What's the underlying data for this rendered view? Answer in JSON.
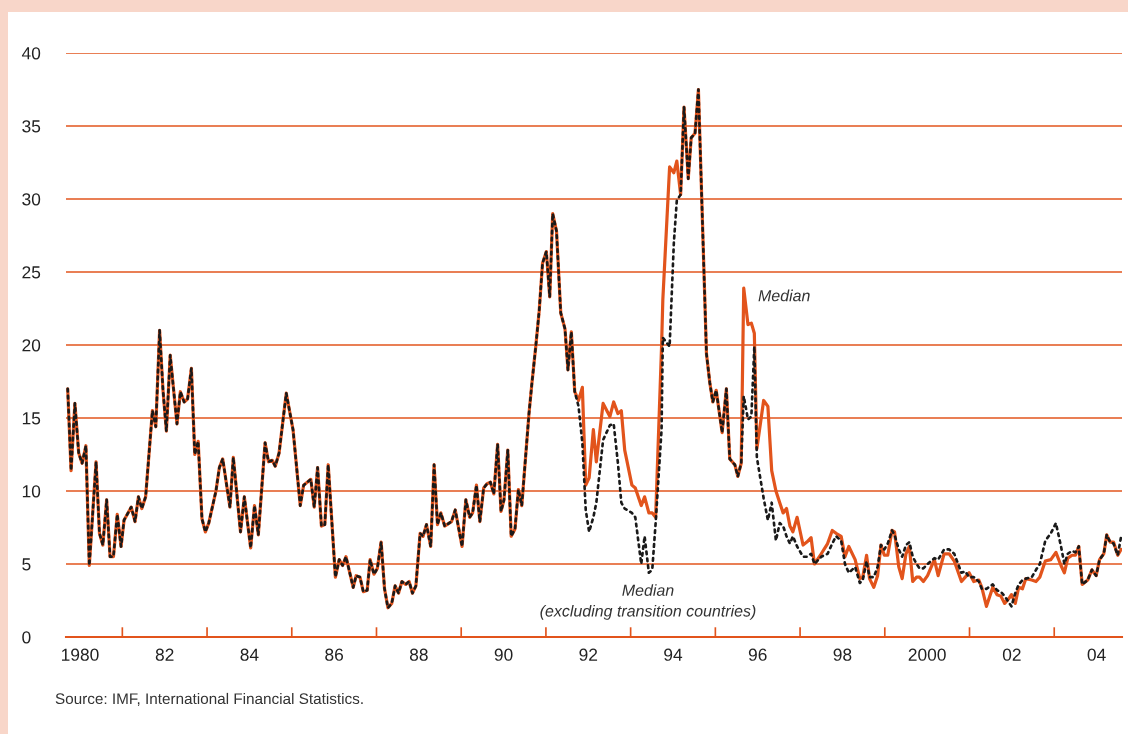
{
  "chart_data": {
    "type": "line",
    "xlim": [
      1979.67,
      2004.6
    ],
    "ylim": [
      0,
      40
    ],
    "yticks": [
      0,
      5,
      10,
      15,
      20,
      25,
      30,
      35,
      40
    ],
    "xticks": [
      {
        "value": 1980,
        "label": "1980"
      },
      {
        "value": 1981,
        "label": null
      },
      {
        "value": 1982,
        "label": "82"
      },
      {
        "value": 1983,
        "label": null
      },
      {
        "value": 1984,
        "label": "84"
      },
      {
        "value": 1985,
        "label": null
      },
      {
        "value": 1986,
        "label": "86"
      },
      {
        "value": 1987,
        "label": null
      },
      {
        "value": 1988,
        "label": "88"
      },
      {
        "value": 1989,
        "label": null
      },
      {
        "value": 1990,
        "label": "90"
      },
      {
        "value": 1991,
        "label": null
      },
      {
        "value": 1992,
        "label": "92"
      },
      {
        "value": 1993,
        "label": null
      },
      {
        "value": 1994,
        "label": "94"
      },
      {
        "value": 1995,
        "label": null
      },
      {
        "value": 1996,
        "label": "96"
      },
      {
        "value": 1997,
        "label": null
      },
      {
        "value": 1998,
        "label": "98"
      },
      {
        "value": 1999,
        "label": null
      },
      {
        "value": 2000,
        "label": "2000"
      },
      {
        "value": 2001,
        "label": null
      },
      {
        "value": 2002,
        "label": "02"
      },
      {
        "value": 2003,
        "label": null
      },
      {
        "value": 2004,
        "label": "04"
      }
    ],
    "grid": "y",
    "annotations": [
      "Source: IMF, International Financial Statistics."
    ],
    "x": [
      1979.71,
      1979.79,
      1979.88,
      1979.97,
      1980.05,
      1980.14,
      1980.22,
      1980.38,
      1980.46,
      1980.54,
      1980.63,
      1980.71,
      1980.79,
      1980.88,
      1980.97,
      1981.04,
      1981.21,
      1981.3,
      1981.38,
      1981.46,
      1981.55,
      1981.71,
      1981.79,
      1981.88,
      1981.96,
      1982.04,
      1982.13,
      1982.29,
      1982.37,
      1982.46,
      1982.54,
      1982.63,
      1982.71,
      1982.79,
      1982.88,
      1982.96,
      1983.04,
      1983.21,
      1983.29,
      1983.37,
      1983.54,
      1983.62,
      1983.79,
      1983.88,
      1984.03,
      1984.12,
      1984.21,
      1984.37,
      1984.45,
      1984.54,
      1984.61,
      1984.7,
      1984.87,
      1985.03,
      1985.2,
      1985.28,
      1985.45,
      1985.53,
      1985.61,
      1985.7,
      1985.78,
      1985.86,
      1986.03,
      1986.12,
      1986.2,
      1986.28,
      1986.45,
      1986.52,
      1986.61,
      1986.69,
      1986.78,
      1986.85,
      1986.94,
      1987.02,
      1987.11,
      1987.19,
      1987.27,
      1987.36,
      1987.44,
      1987.52,
      1987.6,
      1987.69,
      1987.77,
      1987.85,
      1987.93,
      1988.03,
      1988.1,
      1988.18,
      1988.28,
      1988.36,
      1988.44,
      1988.52,
      1988.61,
      1988.77,
      1988.86,
      1989.02,
      1989.11,
      1989.2,
      1989.27,
      1989.36,
      1989.44,
      1989.53,
      1989.61,
      1989.69,
      1989.77,
      1989.86,
      1989.94,
      1990.01,
      1990.1,
      1990.18,
      1990.27,
      1990.35,
      1990.43,
      1990.6,
      1990.67,
      1990.76,
      1990.84,
      1990.92,
      1991.01,
      1991.09,
      1991.16,
      1991.25,
      1991.35,
      1991.45,
      1991.52,
      1991.6,
      1991.68,
      1991.77,
      1991.86,
      1991.94,
      1992.02,
      1992.12,
      1992.19,
      1992.35,
      1992.51,
      1992.6,
      1992.7,
      1992.78,
      1992.86,
      1993.03,
      1993.11,
      1993.25,
      1993.33,
      1993.43,
      1993.51,
      1993.59,
      1993.73,
      1993.76,
      1993.92,
      1994.02,
      1994.09,
      1994.18,
      1994.26,
      1994.36,
      1994.43,
      1994.52,
      1994.6,
      1994.68,
      1994.79,
      1994.87,
      1994.94,
      1995.02,
      1995.16,
      1995.26,
      1995.34,
      1995.46,
      1995.53,
      1995.61,
      1995.67,
      1995.77,
      1995.85,
      1995.92,
      1995.98,
      1996.14,
      1996.24,
      1996.33,
      1996.43,
      1996.52,
      1996.6,
      1996.68,
      1996.76,
      1996.83,
      1996.93,
      1997.07,
      1997.16,
      1997.26,
      1997.34,
      1997.5,
      1997.65,
      1997.76,
      1997.85,
      1997.97,
      1998.06,
      1998.15,
      1998.3,
      1998.41,
      1998.48,
      1998.57,
      1998.64,
      1998.74,
      1998.83,
      1998.91,
      1998.99,
      1999.07,
      1999.17,
      1999.23,
      1999.33,
      1999.41,
      1999.5,
      1999.58,
      1999.66,
      1999.75,
      1999.82,
      1999.91,
      2000.01,
      2000.17,
      2000.26,
      2000.4,
      2000.52,
      2000.64,
      2000.81,
      2000.9,
      2000.99,
      2001.1,
      2001.22,
      2001.29,
      2001.4,
      2001.55,
      2001.65,
      2001.74,
      2001.83,
      2001.92,
      2001.99,
      2002.08,
      2002.16,
      2002.25,
      2002.33,
      2002.47,
      2002.57,
      2002.66,
      2002.79,
      2002.92,
      2003.04,
      2003.16,
      2003.24,
      2003.32,
      2003.42,
      2003.5,
      2003.58,
      2003.66,
      2003.79,
      2003.89,
      2003.99,
      2004.07,
      2004.17,
      2004.24,
      2004.32,
      2004.4,
      2004.5,
      2004.58
    ],
    "series": [
      {
        "name": "Median",
        "color": "#e2541c",
        "line_style": "solid",
        "values": [
          17.0,
          11.4,
          16.0,
          12.6,
          11.9,
          13.1,
          4.9,
          12.0,
          7.1,
          6.3,
          9.4,
          5.5,
          5.5,
          8.4,
          6.2,
          8.0,
          8.9,
          7.9,
          9.6,
          8.8,
          9.6,
          15.5,
          14.4,
          21.0,
          16.9,
          14.1,
          19.3,
          14.6,
          16.8,
          16.1,
          16.3,
          18.4,
          12.5,
          13.4,
          8.1,
          7.2,
          7.8,
          10.0,
          11.6,
          12.2,
          8.9,
          12.3,
          7.2,
          9.6,
          6.1,
          9.0,
          7.0,
          13.3,
          12.0,
          12.1,
          11.7,
          12.6,
          16.7,
          14.2,
          9.0,
          10.4,
          10.8,
          8.9,
          11.6,
          7.6,
          7.7,
          11.8,
          4.1,
          5.3,
          4.9,
          5.5,
          3.4,
          4.2,
          4.1,
          3.1,
          3.2,
          5.3,
          4.3,
          4.7,
          6.5,
          3.3,
          2.0,
          2.3,
          3.5,
          3.0,
          3.8,
          3.6,
          3.8,
          3.0,
          3.5,
          7.1,
          6.9,
          7.7,
          6.2,
          11.8,
          7.7,
          8.5,
          7.6,
          7.9,
          8.7,
          6.2,
          9.4,
          8.2,
          8.5,
          10.4,
          7.9,
          10.2,
          10.5,
          10.6,
          9.8,
          13.2,
          8.6,
          9.4,
          12.8,
          6.9,
          7.4,
          10.1,
          9.0,
          15.3,
          17.4,
          19.9,
          22.3,
          25.6,
          26.4,
          23.3,
          29.0,
          27.8,
          22.2,
          21.1,
          18.3,
          20.9,
          16.8,
          16.2,
          17.1,
          10.4,
          10.9,
          14.2,
          12.0,
          16.0,
          15.1,
          16.1,
          15.3,
          15.5,
          12.8,
          10.4,
          10.2,
          9.0,
          9.6,
          8.5,
          8.5,
          8.2,
          19.9,
          23.1,
          32.2,
          31.8,
          32.6,
          30.3,
          36.3,
          31.4,
          34.2,
          34.5,
          37.5,
          29.9,
          19.4,
          17.4,
          16.1,
          16.9,
          14.0,
          17.0,
          12.2,
          11.8,
          11.0,
          11.9,
          23.9,
          21.4,
          21.5,
          20.8,
          12.9,
          16.2,
          15.8,
          11.4,
          10.0,
          9.2,
          8.5,
          8.8,
          7.6,
          7.2,
          8.2,
          6.3,
          6.5,
          6.8,
          5.0,
          5.7,
          6.4,
          7.3,
          7.1,
          6.9,
          5.5,
          6.2,
          5.3,
          4.0,
          4.1,
          5.6,
          4.0,
          3.4,
          4.2,
          6.3,
          5.6,
          5.6,
          7.3,
          7.2,
          4.8,
          4.0,
          5.7,
          6.2,
          3.8,
          4.1,
          4.1,
          3.8,
          4.2,
          5.3,
          4.2,
          5.7,
          5.7,
          5.2,
          3.8,
          4.1,
          4.4,
          3.8,
          3.9,
          3.4,
          2.1,
          3.4,
          2.9,
          2.8,
          2.3,
          2.6,
          2.9,
          2.3,
          3.4,
          3.3,
          4.0,
          3.9,
          3.8,
          4.1,
          5.2,
          5.3,
          5.8,
          4.9,
          4.4,
          5.4,
          5.6,
          5.6,
          6.2,
          3.6,
          3.9,
          4.6,
          4.2,
          5.3,
          5.7,
          7.0,
          6.5,
          6.5,
          5.6,
          6.0
        ]
      },
      {
        "name": "Median\n(excluding transition countries)",
        "color": "#1a1a1a",
        "line_style": "dotted",
        "values": [
          17.0,
          11.4,
          16.0,
          12.6,
          11.9,
          13.1,
          4.9,
          12.0,
          7.1,
          6.3,
          9.4,
          5.5,
          5.5,
          8.4,
          6.2,
          8.0,
          8.9,
          7.9,
          9.6,
          8.8,
          9.6,
          15.5,
          14.4,
          21.0,
          16.9,
          14.1,
          19.3,
          14.6,
          16.8,
          16.1,
          16.3,
          18.4,
          12.5,
          13.4,
          8.1,
          7.2,
          7.8,
          10.0,
          11.6,
          12.2,
          8.9,
          12.3,
          7.2,
          9.6,
          6.1,
          9.0,
          7.0,
          13.3,
          12.0,
          12.1,
          11.7,
          12.6,
          16.7,
          14.2,
          9.0,
          10.4,
          10.8,
          8.9,
          11.6,
          7.6,
          7.7,
          11.8,
          4.1,
          5.3,
          4.9,
          5.5,
          3.4,
          4.2,
          4.1,
          3.1,
          3.2,
          5.3,
          4.3,
          4.7,
          6.5,
          3.3,
          2.0,
          2.3,
          3.5,
          3.0,
          3.8,
          3.6,
          3.8,
          3.0,
          3.5,
          7.1,
          6.9,
          7.7,
          6.2,
          11.8,
          7.7,
          8.5,
          7.6,
          7.9,
          8.7,
          6.2,
          9.4,
          8.2,
          8.5,
          10.4,
          7.9,
          10.2,
          10.5,
          10.6,
          9.8,
          13.2,
          8.6,
          9.4,
          12.8,
          6.9,
          7.4,
          10.1,
          9.0,
          15.3,
          17.4,
          19.9,
          22.3,
          25.6,
          26.4,
          23.3,
          29.0,
          27.8,
          22.2,
          21.1,
          18.3,
          20.9,
          16.8,
          15.8,
          13.3,
          8.7,
          7.2,
          8.2,
          9.2,
          13.5,
          14.5,
          14.6,
          11.9,
          9.2,
          8.8,
          8.5,
          8.2,
          5.0,
          6.9,
          4.4,
          4.6,
          7.8,
          14.2,
          20.5,
          19.9,
          27.0,
          29.9,
          30.3,
          36.3,
          31.4,
          34.2,
          34.5,
          37.5,
          29.9,
          19.4,
          17.4,
          16.1,
          16.9,
          14.0,
          17.0,
          12.2,
          11.8,
          11.0,
          11.9,
          16.5,
          14.9,
          15.1,
          19.9,
          12.3,
          9.5,
          8.0,
          9.2,
          6.6,
          7.8,
          7.6,
          6.9,
          6.4,
          6.9,
          6.2,
          5.5,
          5.5,
          5.7,
          5.0,
          5.5,
          5.7,
          6.4,
          6.9,
          6.6,
          5.0,
          4.4,
          4.8,
          3.7,
          3.9,
          5.2,
          4.1,
          4.1,
          4.8,
          6.3,
          6.0,
          6.4,
          7.3,
          7.0,
          6.0,
          5.5,
          6.3,
          6.5,
          5.5,
          5.0,
          4.7,
          4.7,
          5.0,
          5.4,
          5.3,
          6.0,
          6.0,
          5.7,
          4.4,
          4.5,
          4.1,
          4.1,
          3.8,
          3.3,
          3.3,
          3.6,
          3.2,
          3.1,
          2.8,
          2.4,
          2.1,
          3.0,
          3.6,
          3.9,
          4.0,
          4.1,
          4.6,
          5.0,
          6.6,
          7.1,
          7.8,
          6.2,
          5.0,
          5.7,
          5.9,
          5.8,
          6.2,
          3.6,
          3.9,
          4.6,
          4.2,
          5.3,
          5.7,
          7.0,
          6.5,
          6.4,
          5.6,
          6.9
        ]
      }
    ]
  }
}
